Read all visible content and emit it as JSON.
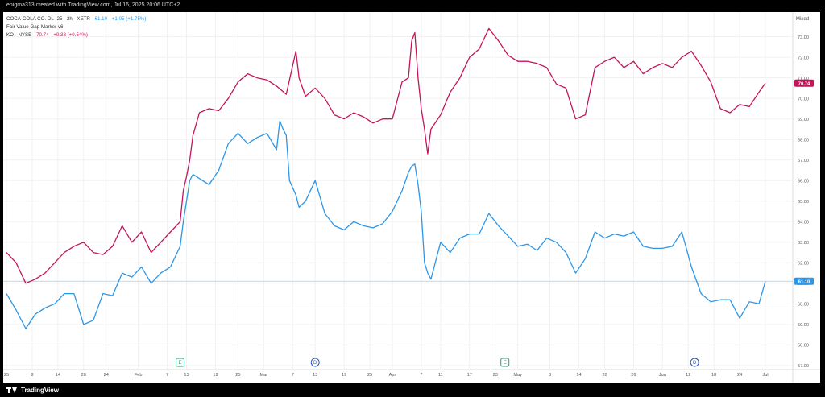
{
  "header": {
    "caption": "enigma313 created with TradingView.com, Jul 16, 2025 20:06 UTC+2"
  },
  "footer": {
    "brand": "TradingView"
  },
  "legend": {
    "series1": {
      "name": "COCA-COLA CO. DL-,25 · 2h · XETR",
      "price": "61.10",
      "change": "+1.05 (+1.75%)"
    },
    "indicator": "Fair Value Gap Marker v6",
    "series2": {
      "name": "KO · NYSE",
      "price": "70.74",
      "change": "+0.38 (+0.54%)"
    }
  },
  "colors": {
    "blue": "#2c96e8",
    "red": "#c4145a",
    "grid": "#f1f1f1",
    "axis_text": "#555555",
    "event_green": "#22a06b",
    "event_blue": "#2d55c8"
  },
  "chart_data": {
    "type": "line",
    "scale_mode": "Mixed",
    "ylim": [
      56.8,
      74.2
    ],
    "y_ticks": [
      "73.00",
      "72.00",
      "71.00",
      "70.00",
      "69.00",
      "68.00",
      "67.00",
      "66.00",
      "65.00",
      "64.00",
      "63.00",
      "62.00",
      "61.00",
      "60.00",
      "59.00",
      "58.00",
      "57.00"
    ],
    "x_ticks": [
      "25",
      "8",
      "14",
      "20",
      "24",
      "Feb",
      "7",
      "13",
      "19",
      "25",
      "Mar",
      "7",
      "13",
      "19",
      "25",
      "Apr",
      "7",
      "11",
      "17",
      "23",
      "May",
      "8",
      "14",
      "20",
      "26",
      "Jun",
      "12",
      "18",
      "24",
      "Jul"
    ],
    "x_tick_pos": [
      0,
      8,
      16,
      24,
      31,
      41,
      50,
      56,
      65,
      72,
      80,
      89,
      96,
      105,
      113,
      120,
      129,
      135,
      144,
      152,
      159,
      169,
      178,
      186,
      195,
      204,
      212,
      220,
      228,
      236
    ],
    "x_max": 240,
    "price_labels": {
      "red": "70.74",
      "blue": "61.10"
    },
    "events": [
      {
        "label": "E",
        "x": 54,
        "kind": "earnings"
      },
      {
        "label": "D",
        "x": 96,
        "kind": "dividend"
      },
      {
        "label": "E",
        "x": 155,
        "kind": "earnings"
      },
      {
        "label": "D",
        "x": 214,
        "kind": "dividend"
      }
    ],
    "series": [
      {
        "name": "KO · NYSE",
        "color": "#c4145a",
        "x": [
          0,
          3,
          6,
          9,
          12,
          15,
          18,
          21,
          24,
          27,
          30,
          33,
          36,
          39,
          42,
          45,
          48,
          51,
          54,
          55,
          56,
          57,
          58,
          60,
          63,
          66,
          69,
          72,
          75,
          78,
          81,
          84,
          87,
          90,
          91,
          93,
          96,
          99,
          102,
          105,
          108,
          111,
          114,
          117,
          120,
          123,
          125,
          126,
          127,
          128,
          129,
          130,
          131,
          132,
          135,
          138,
          141,
          144,
          147,
          150,
          153,
          156,
          159,
          162,
          165,
          168,
          171,
          174,
          177,
          180,
          183,
          186,
          189,
          192,
          195,
          198,
          201,
          204,
          207,
          210,
          213,
          216,
          219,
          222,
          225,
          228,
          231,
          234,
          236
        ],
        "values": [
          62.5,
          62.0,
          61.0,
          61.2,
          61.5,
          62.0,
          62.5,
          62.8,
          63.0,
          62.5,
          62.4,
          62.8,
          63.8,
          63.0,
          63.5,
          62.5,
          63.0,
          63.5,
          64.0,
          65.5,
          66.2,
          67.0,
          68.2,
          69.3,
          69.5,
          69.4,
          70.0,
          70.8,
          71.2,
          71.0,
          70.9,
          70.6,
          70.2,
          72.3,
          71.0,
          70.1,
          70.5,
          70.0,
          69.2,
          69.0,
          69.3,
          69.1,
          68.8,
          69.0,
          69.0,
          70.8,
          71.0,
          72.8,
          73.2,
          71.0,
          69.5,
          68.5,
          67.3,
          68.5,
          69.2,
          70.3,
          71.0,
          72.0,
          72.4,
          73.4,
          72.8,
          72.1,
          71.8,
          71.8,
          71.7,
          71.5,
          70.7,
          70.5,
          69.0,
          69.2,
          71.5,
          71.8,
          72.0,
          71.5,
          71.8,
          71.2,
          71.5,
          71.7,
          71.5,
          72.0,
          72.3,
          71.6,
          70.8,
          69.5,
          69.3,
          69.7,
          69.6,
          70.3,
          70.74
        ]
      },
      {
        "name": "COCA-COLA CO. DL-,25",
        "color": "#2c96e8",
        "x": [
          0,
          3,
          6,
          9,
          12,
          15,
          18,
          21,
          24,
          27,
          30,
          33,
          36,
          39,
          42,
          45,
          48,
          51,
          54,
          55,
          56,
          57,
          58,
          60,
          63,
          66,
          69,
          72,
          75,
          78,
          81,
          84,
          85,
          86,
          87,
          88,
          90,
          91,
          93,
          96,
          99,
          102,
          105,
          108,
          111,
          114,
          117,
          120,
          123,
          125,
          126,
          127,
          128,
          129,
          130,
          131,
          132,
          135,
          138,
          141,
          144,
          147,
          150,
          153,
          156,
          159,
          162,
          165,
          168,
          171,
          174,
          177,
          180,
          183,
          186,
          189,
          192,
          195,
          198,
          201,
          204,
          207,
          210,
          213,
          216,
          219,
          222,
          225,
          228,
          231,
          234,
          236
        ],
        "values": [
          60.5,
          59.7,
          58.8,
          59.5,
          59.8,
          60.0,
          60.5,
          60.5,
          59.0,
          59.2,
          60.5,
          60.4,
          61.5,
          61.3,
          61.8,
          61.0,
          61.5,
          61.8,
          62.8,
          64.0,
          65.0,
          66.0,
          66.3,
          66.1,
          65.8,
          66.5,
          67.8,
          68.3,
          67.8,
          68.1,
          68.3,
          67.5,
          68.9,
          68.5,
          68.2,
          66.0,
          65.3,
          64.7,
          65.0,
          66.0,
          64.4,
          63.8,
          63.6,
          64.0,
          63.8,
          63.7,
          63.9,
          64.5,
          65.5,
          66.4,
          66.7,
          66.8,
          65.8,
          64.5,
          62.0,
          61.5,
          61.2,
          63.0,
          62.5,
          63.2,
          63.4,
          63.4,
          64.4,
          63.8,
          63.3,
          62.8,
          62.9,
          62.6,
          63.2,
          63.0,
          62.5,
          61.5,
          62.2,
          63.5,
          63.2,
          63.4,
          63.3,
          63.5,
          62.8,
          62.7,
          62.7,
          62.8,
          63.5,
          61.8,
          60.5,
          60.1,
          60.2,
          60.2,
          59.3,
          60.1,
          60.0,
          61.1
        ]
      }
    ]
  }
}
